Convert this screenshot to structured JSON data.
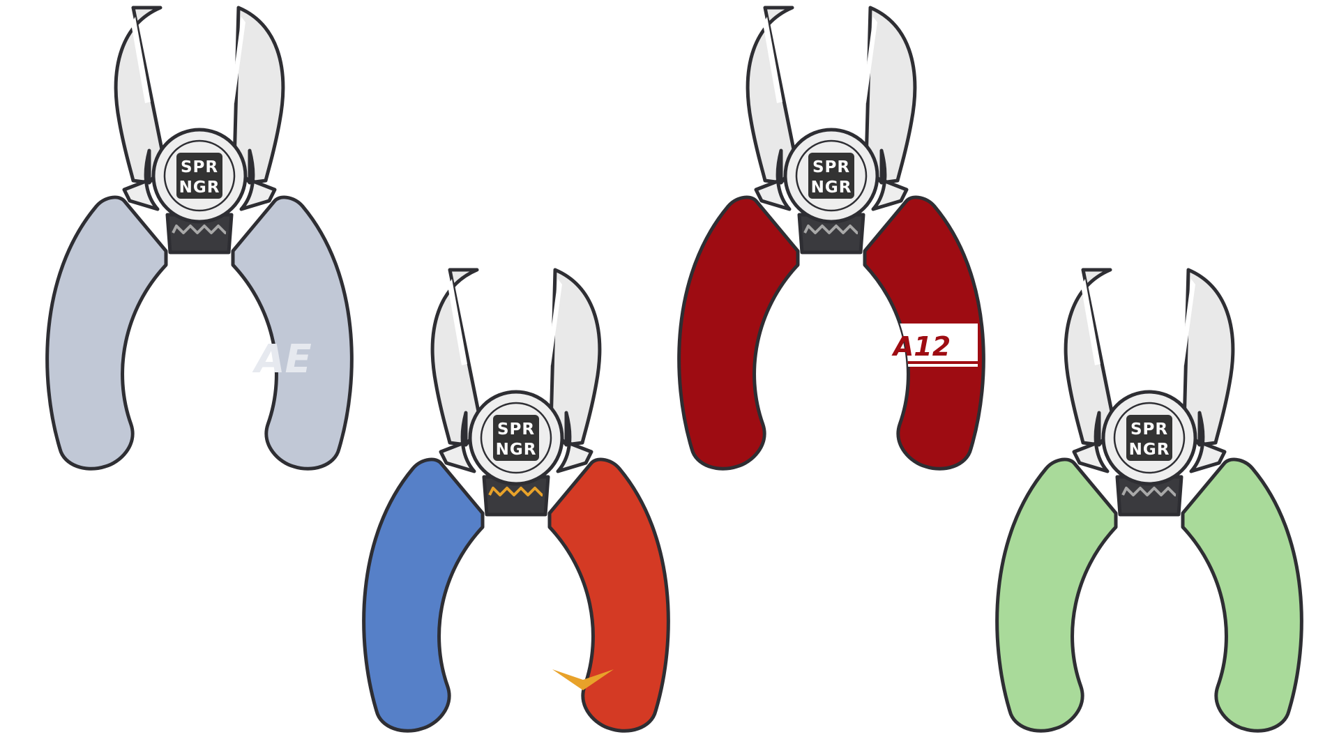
{
  "logo": {
    "line1": "SPR",
    "line2": "NGR"
  },
  "colors": {
    "outline": "#2e2e33",
    "blade": "#e9e9e9",
    "blade_highlight": "#ffffff",
    "hub": "#eeeeee",
    "logo_box": "#333333"
  },
  "pliers": [
    {
      "name": "grey",
      "left_handle_color": "#c1c8d6",
      "right_handle_color": "#c1c8d6",
      "spring_color": "#a8a8a8",
      "mark": {
        "type": "text-logo",
        "text": "AE",
        "color": "#e6e9ef"
      }
    },
    {
      "name": "blue-red",
      "left_handle_color": "#5680c8",
      "right_handle_color": "#d43a24",
      "spring_color": "#e8a22a",
      "mark": {
        "type": "chevron",
        "color": "#e8a22a"
      }
    },
    {
      "name": "red",
      "left_handle_color": "#9e0c12",
      "right_handle_color": "#9e0c12",
      "spring_color": "#a8a8a8",
      "mark": {
        "type": "band",
        "text": "A12",
        "color": "#ffffff",
        "text_color": "#9e0c12"
      }
    },
    {
      "name": "green",
      "left_handle_color": "#a9da9a",
      "right_handle_color": "#a9da9a",
      "spring_color": "#a8a8a8",
      "mark": {
        "type": "none"
      }
    }
  ]
}
